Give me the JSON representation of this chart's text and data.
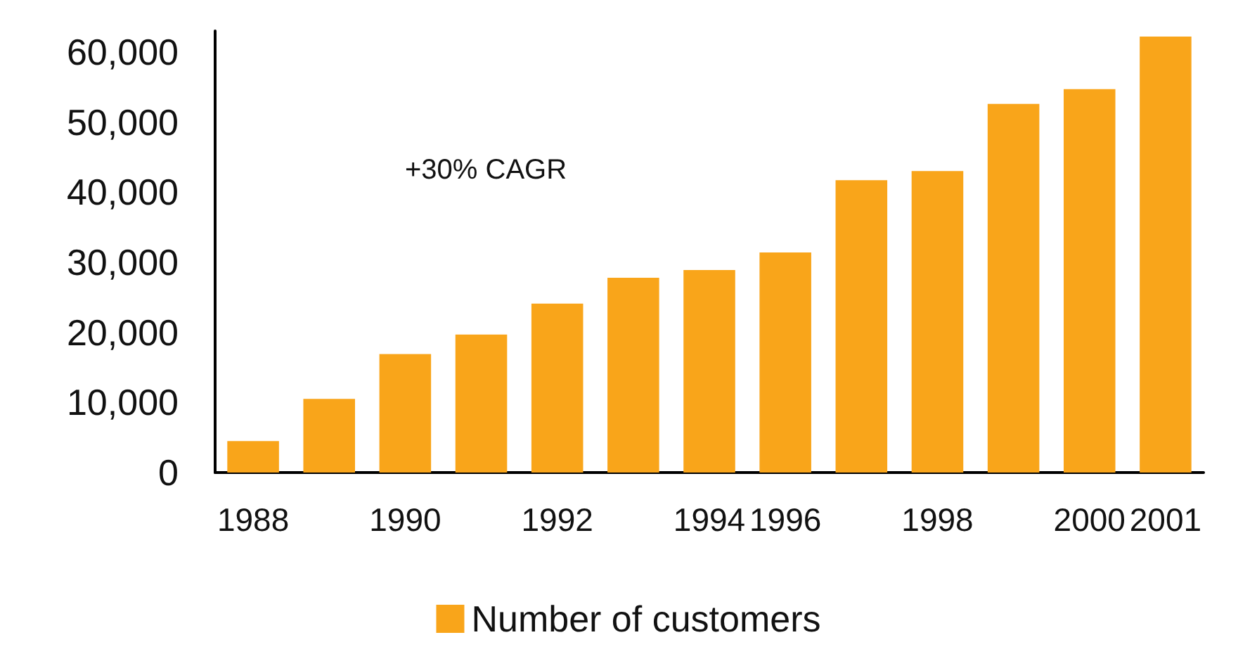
{
  "chart_data": {
    "type": "bar",
    "categories": [
      "1988",
      null,
      "1990",
      null,
      "1992",
      null,
      "1994",
      "1996",
      null,
      "1998",
      null,
      "2000",
      "2001"
    ],
    "series": [
      {
        "name": "Number of customers",
        "color": "#f9a51a",
        "values": [
          4500,
          10500,
          16900,
          19700,
          24100,
          27800,
          28900,
          31400,
          41700,
          43000,
          52600,
          54700,
          62200
        ]
      }
    ],
    "ylim": [
      0,
      63000
    ],
    "yticks": [
      0,
      {
        "value": 10000,
        "label": "10,000"
      },
      {
        "value": 20000,
        "label": "20,000"
      },
      {
        "value": 30000,
        "label": "30,000"
      },
      {
        "value": 40000,
        "label": "40,000"
      },
      {
        "value": 50000,
        "label": "50,000"
      },
      {
        "value": 60000,
        "label": "60,000"
      }
    ],
    "grid": false,
    "legend": "bottom",
    "annotations": [
      "+30% CAGR"
    ]
  }
}
